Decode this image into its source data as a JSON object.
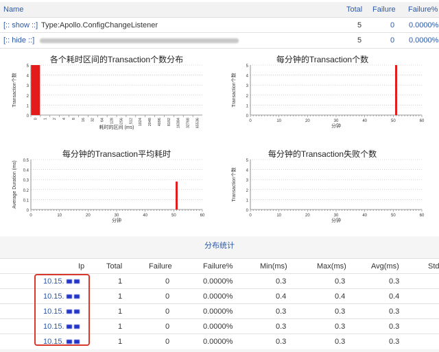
{
  "header": {
    "columns": {
      "name": "Name",
      "total": "Total",
      "failure": "Failure",
      "failure_pct": "Failure%"
    },
    "rows": [
      {
        "toggle": "[:: show ::]",
        "name": "Type:Apollo.ConfigChangeListener",
        "total": "5",
        "failure": "0",
        "failure_pct": "0.0000%"
      },
      {
        "toggle": "[:: hide ::]",
        "name": "",
        "total": "5",
        "failure": "0",
        "failure_pct": "0.0000%"
      }
    ]
  },
  "charts": {
    "c1_title": "各个耗时区间的Transaction个数分布",
    "c2_title": "每分钟的Transaction个数",
    "c3_title": "每分钟的Transaction平均耗时",
    "c4_title": "每分钟的Transaction失败个数"
  },
  "chart_data": [
    {
      "type": "bar",
      "title": "各个耗时区间的Transaction个数分布",
      "xlabel": "耗时的区间 (ms)",
      "ylabel": "Transaction个数",
      "categories": [
        "0",
        "1",
        "2",
        "4",
        "8",
        "16",
        "32",
        "64",
        "128",
        "256",
        "512",
        "1024",
        "2048",
        "4096",
        "8192",
        "16384",
        "32768",
        "65536"
      ],
      "values": [
        5,
        0,
        0,
        0,
        0,
        0,
        0,
        0,
        0,
        0,
        0,
        0,
        0,
        0,
        0,
        0,
        0,
        0
      ],
      "ylim": [
        0,
        5
      ],
      "color": "#e31b1b",
      "grid": true
    },
    {
      "type": "bar",
      "title": "每分钟的Transaction个数",
      "xlabel": "分钟",
      "ylabel": "Transaction个数",
      "x": [
        51
      ],
      "values": [
        5
      ],
      "xlim": [
        0,
        60
      ],
      "ylim": [
        0,
        5
      ],
      "color": "#e31b1b",
      "grid": true
    },
    {
      "type": "bar",
      "title": "每分钟的Transaction平均耗时",
      "xlabel": "分钟",
      "ylabel": "Average Duration (ms)",
      "x": [
        51
      ],
      "values": [
        0.28
      ],
      "xlim": [
        0,
        60
      ],
      "ylim": [
        0,
        0.5
      ],
      "color": "#e31b1b",
      "grid": true
    },
    {
      "type": "bar",
      "title": "每分钟的Transaction失败个数",
      "xlabel": "分钟",
      "ylabel": "Transaction个数",
      "x": [],
      "values": [],
      "xlim": [
        0,
        60
      ],
      "ylim": [
        0,
        5
      ],
      "color": "#e31b1b",
      "grid": true
    }
  ],
  "stats": {
    "title": "分布统计",
    "columns": {
      "ip": "Ip",
      "total": "Total",
      "failure": "Failure",
      "failure_pct": "Failure%",
      "min": "Min(ms)",
      "max": "Max(ms)",
      "avg": "Avg(ms)",
      "std": "Std"
    },
    "rows": [
      {
        "ip": "10.15.",
        "total": "1",
        "failure": "0",
        "failure_pct": "0.0000%",
        "min": "0.3",
        "max": "0.3",
        "avg": "0.3"
      },
      {
        "ip": "10.15.",
        "total": "1",
        "failure": "0",
        "failure_pct": "0.0000%",
        "min": "0.4",
        "max": "0.4",
        "avg": "0.4"
      },
      {
        "ip": "10.15.",
        "total": "1",
        "failure": "0",
        "failure_pct": "0.0000%",
        "min": "0.3",
        "max": "0.3",
        "avg": "0.3"
      },
      {
        "ip": "10.15.",
        "total": "1",
        "failure": "0",
        "failure_pct": "0.0000%",
        "min": "0.3",
        "max": "0.3",
        "avg": "0.3"
      },
      {
        "ip": "10.15.",
        "total": "1",
        "failure": "0",
        "failure_pct": "0.0000%",
        "min": "0.3",
        "max": "0.3",
        "avg": "0.3"
      }
    ]
  },
  "colors": {
    "link": "#2a57a8",
    "bar": "#e31b1b",
    "highlight": "#d9362c"
  }
}
